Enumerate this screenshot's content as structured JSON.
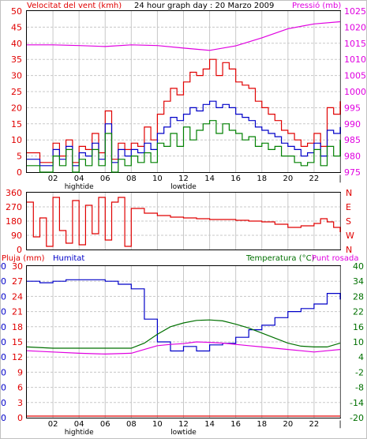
{
  "chart_data": [
    {
      "type": "line",
      "title": "24 hour graph day : 20 Marzo 2009",
      "left_axis_label": "Velocitat del vent (kmh)",
      "right_axis_label": "Pressió (mb)",
      "x_ticks": [
        "02",
        "04",
        "06",
        "08",
        "10",
        "12",
        "14",
        "16",
        "18",
        "20",
        "22",
        "|"
      ],
      "x_annotations": [
        {
          "text": "hightide",
          "at": "04"
        },
        {
          "text": "lowtide",
          "at": "12"
        }
      ],
      "left_axis": {
        "ylim": [
          0,
          50
        ],
        "ticks": [
          0,
          5,
          10,
          15,
          20,
          25,
          30,
          35,
          40,
          45,
          50
        ]
      },
      "right_axis": {
        "ylim": [
          975,
          1025
        ],
        "ticks": [
          975,
          980,
          985,
          990,
          995,
          1000,
          1005,
          1010,
          1015,
          1020,
          1025
        ]
      },
      "series": [
        {
          "color": "#e00000",
          "axis": "left",
          "x": [
            0,
            1,
            2,
            2.5,
            3,
            3.5,
            4,
            4.5,
            5,
            5.5,
            6,
            6.5,
            7,
            7.5,
            8,
            8.5,
            9,
            9.5,
            10,
            10.5,
            11,
            11.5,
            12,
            12.5,
            13,
            13.5,
            14,
            14.5,
            15,
            15.5,
            16,
            16.5,
            17,
            17.5,
            18,
            18.5,
            19,
            19.5,
            20,
            20.5,
            21,
            21.5,
            22,
            22.5,
            23,
            23.5,
            24
          ],
          "values": [
            6,
            3,
            9,
            5,
            10,
            3,
            8,
            7,
            12,
            6,
            19,
            4,
            9,
            7,
            9,
            8,
            14,
            10,
            18,
            22,
            26,
            24,
            28,
            31,
            30,
            32,
            35,
            30,
            34,
            32,
            28,
            27,
            26,
            22,
            20,
            18,
            16,
            13,
            12,
            10,
            8,
            9,
            12,
            8,
            20,
            18,
            22
          ]
        },
        {
          "color": "#0000c8",
          "axis": "left",
          "x": [
            0,
            1,
            2,
            2.5,
            3,
            3.5,
            4,
            4.5,
            5,
            5.5,
            6,
            6.5,
            7,
            7.5,
            8,
            8.5,
            9,
            9.5,
            10,
            10.5,
            11,
            11.5,
            12,
            12.5,
            13,
            13.5,
            14,
            14.5,
            15,
            15.5,
            16,
            16.5,
            17,
            17.5,
            18,
            18.5,
            19,
            19.5,
            20,
            20.5,
            21,
            21.5,
            22,
            22.5,
            23,
            23.5,
            24
          ],
          "values": [
            4,
            2,
            7,
            4,
            8,
            2,
            6,
            5,
            9,
            4,
            15,
            3,
            7,
            5,
            7,
            6,
            9,
            7,
            12,
            14,
            17,
            16,
            18,
            20,
            19,
            21,
            22,
            20,
            21,
            20,
            18,
            17,
            16,
            14,
            13,
            12,
            11,
            9,
            8,
            7,
            5,
            6,
            9,
            5,
            13,
            12,
            14
          ]
        },
        {
          "color": "#008000",
          "axis": "left",
          "x": [
            0,
            1,
            2,
            2.5,
            3,
            3.5,
            4,
            4.5,
            5,
            5.5,
            6,
            6.5,
            7,
            7.5,
            8,
            8.5,
            9,
            9.5,
            10,
            10.5,
            11,
            11.5,
            12,
            12.5,
            13,
            13.5,
            14,
            14.5,
            15,
            15.5,
            16,
            16.5,
            17,
            17.5,
            18,
            18.5,
            19,
            19.5,
            20,
            20.5,
            21,
            21.5,
            22,
            22.5,
            23,
            23.5,
            24
          ],
          "values": [
            2,
            0,
            5,
            2,
            7,
            0,
            4,
            2,
            7,
            2,
            12,
            0,
            4,
            2,
            5,
            3,
            6,
            3,
            9,
            8,
            12,
            8,
            14,
            10,
            13,
            15,
            16,
            12,
            15,
            13,
            12,
            10,
            11,
            8,
            9,
            7,
            8,
            5,
            5,
            3,
            2,
            3,
            7,
            2,
            8,
            5,
            10
          ]
        },
        {
          "color": "#e000e0",
          "axis": "right",
          "x": [
            0,
            2,
            4,
            6,
            8,
            10,
            12,
            14,
            16,
            18,
            20,
            22,
            24
          ],
          "values": [
            1014.5,
            1014.5,
            1014.3,
            1014.0,
            1014.5,
            1014.3,
            1013.5,
            1012.8,
            1014.2,
            1016.7,
            1019.5,
            1021.0,
            1021.7
          ]
        }
      ]
    },
    {
      "type": "line",
      "right_axis_label": "N W S E N",
      "left_axis": {
        "ylim": [
          0,
          360
        ],
        "ticks": [
          0,
          90,
          180,
          270,
          360
        ]
      },
      "series": [
        {
          "color": "#e00000",
          "x": [
            0,
            0.5,
            1,
            1.5,
            2,
            2.5,
            3,
            3.5,
            4,
            4.5,
            5,
            5.5,
            6,
            6.5,
            7,
            7.5,
            8,
            9,
            10,
            11,
            12,
            13,
            14,
            15,
            16,
            17,
            18,
            19,
            20,
            21,
            22,
            22.5,
            23,
            23.5,
            24
          ],
          "values": [
            300,
            80,
            200,
            20,
            330,
            120,
            40,
            310,
            30,
            280,
            100,
            330,
            60,
            300,
            330,
            20,
            260,
            230,
            215,
            205,
            200,
            195,
            190,
            190,
            185,
            180,
            175,
            160,
            140,
            150,
            165,
            195,
            175,
            140,
            110
          ]
        }
      ]
    },
    {
      "type": "line",
      "left_axis_label": "Pluja (mm)",
      "left_axis2_label": "Humitat",
      "right_axis_label": "Temperatura (°C)",
      "right_axis2_label": "Punt rosada",
      "x_ticks": [
        "02",
        "04",
        "06",
        "08",
        "10",
        "12",
        "14",
        "16",
        "18",
        "20",
        "22",
        "|"
      ],
      "x_annotations": [
        {
          "text": "hightide",
          "at": "04"
        },
        {
          "text": "lowtide",
          "at": "12"
        }
      ],
      "rain_axis": {
        "ylim": [
          0,
          30
        ],
        "ticks": [
          0,
          3,
          6,
          9,
          12,
          15,
          18,
          21,
          24,
          27,
          30
        ]
      },
      "humidity_axis": {
        "ylim": [
          0,
          100
        ],
        "ticks": [
          0,
          10,
          20,
          30,
          40,
          50,
          60,
          70,
          80,
          90,
          100
        ]
      },
      "temp_axis": {
        "ylim": [
          -20,
          40
        ],
        "ticks": [
          -20,
          -14,
          -8,
          -2,
          4,
          10,
          16,
          22,
          28,
          34,
          40
        ]
      },
      "series": [
        {
          "color": "#e00000",
          "axis": "rain",
          "x": [
            0,
            24
          ],
          "values": [
            0,
            0
          ]
        },
        {
          "color": "#0000c8",
          "axis": "humidity",
          "x": [
            0,
            1,
            2,
            3,
            4,
            5,
            6,
            7,
            8,
            9,
            10,
            11,
            12,
            13,
            14,
            15,
            16,
            17,
            18,
            19,
            20,
            21,
            22,
            23,
            23.5,
            24
          ],
          "values": [
            90,
            89,
            90,
            91,
            91,
            91,
            90,
            88,
            85,
            65,
            50,
            44,
            47,
            44,
            48,
            49,
            53,
            58,
            61,
            66,
            70,
            72,
            75,
            82,
            82,
            78
          ]
        },
        {
          "color": "#007000",
          "axis": "temp",
          "x": [
            0,
            2,
            4,
            6,
            8,
            9,
            10,
            11,
            12,
            13,
            14,
            15,
            16,
            17,
            18,
            19,
            20,
            21,
            22,
            23,
            24
          ],
          "values": [
            8,
            7.5,
            7.5,
            7.5,
            7.5,
            9.5,
            13,
            16,
            17.5,
            18.5,
            18.7,
            18.3,
            17,
            15.5,
            13.5,
            11.5,
            9.5,
            8.3,
            8,
            8,
            9.5
          ]
        },
        {
          "color": "#e000e0",
          "axis": "temp",
          "x": [
            0,
            2,
            4,
            6,
            8,
            9,
            10,
            11,
            12,
            13,
            14,
            15,
            16,
            17,
            18,
            19,
            20,
            21,
            22,
            23,
            24
          ],
          "values": [
            6.5,
            6,
            5.5,
            5.2,
            5.5,
            7,
            8.5,
            9,
            9.3,
            10,
            9.8,
            9.5,
            9,
            8.5,
            8,
            7.5,
            7,
            6.5,
            6,
            6.5,
            7
          ]
        }
      ]
    }
  ]
}
